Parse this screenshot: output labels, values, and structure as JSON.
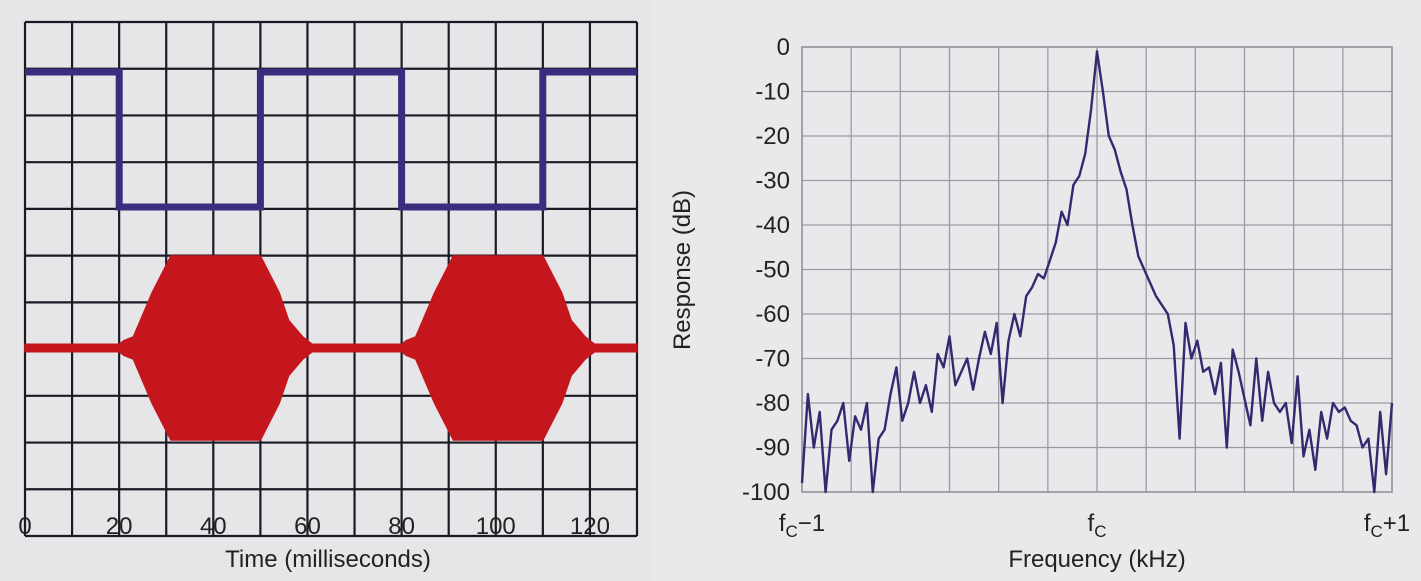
{
  "chart_data": [
    {
      "type": "line",
      "xlabel": "Time (milliseconds)",
      "ylabel": "",
      "xlim": [
        0,
        130
      ],
      "x_ticks": [
        "0",
        "20",
        "40",
        "60",
        "80",
        "100",
        "120"
      ],
      "grid": true,
      "series": [
        {
          "color": "#3b2c7e",
          "style": "square-wave",
          "x": [
            0,
            20,
            20,
            50,
            50,
            80,
            80,
            110,
            110,
            130
          ],
          "level": [
            "high",
            "high",
            "low",
            "low",
            "high",
            "high",
            "low",
            "low",
            "high",
            "high"
          ]
        },
        {
          "color": "#c4161c",
          "style": "amplitude-envelope",
          "x": [
            0,
            20,
            21,
            23,
            27,
            31,
            50,
            54,
            56,
            59,
            61,
            80,
            81,
            83,
            87,
            91,
            110,
            114,
            116,
            119,
            121,
            130
          ],
          "envelope": [
            0.04,
            0.04,
            0.08,
            0.12,
            0.6,
            1.0,
            1.0,
            0.6,
            0.3,
            0.12,
            0.04,
            0.04,
            0.08,
            0.12,
            0.6,
            1.0,
            1.0,
            0.6,
            0.3,
            0.12,
            0.04,
            0.04
          ]
        }
      ]
    },
    {
      "type": "line",
      "xlabel": "Frequency (kHz)",
      "ylabel": "Response (dB)",
      "ylim": [
        -100,
        0
      ],
      "y_ticks": [
        "0",
        "-10",
        "-20",
        "-30",
        "-40",
        "-50",
        "-60",
        "-70",
        "-80",
        "-90",
        "-100"
      ],
      "x_ticks": [
        {
          "base": "f",
          "sub": "C",
          "suffix": "−1"
        },
        {
          "base": "f",
          "sub": "C",
          "suffix": ""
        },
        {
          "base": "f",
          "sub": "C",
          "suffix": "+1"
        }
      ],
      "xlim": [
        -1,
        1
      ],
      "grid": true,
      "series": [
        {
          "color": "#33296e",
          "x": [
            -1.0,
            -0.98,
            -0.96,
            -0.94,
            -0.92,
            -0.9,
            -0.88,
            -0.86,
            -0.84,
            -0.82,
            -0.8,
            -0.78,
            -0.76,
            -0.74,
            -0.72,
            -0.7,
            -0.68,
            -0.66,
            -0.64,
            -0.62,
            -0.6,
            -0.58,
            -0.56,
            -0.54,
            -0.52,
            -0.5,
            -0.48,
            -0.46,
            -0.44,
            -0.42,
            -0.4,
            -0.38,
            -0.36,
            -0.34,
            -0.32,
            -0.3,
            -0.28,
            -0.26,
            -0.24,
            -0.22,
            -0.2,
            -0.18,
            -0.16,
            -0.14,
            -0.12,
            -0.1,
            -0.08,
            -0.06,
            -0.04,
            -0.02,
            0.0,
            0.02,
            0.04,
            0.06,
            0.08,
            0.1,
            0.12,
            0.14,
            0.16,
            0.18,
            0.2,
            0.22,
            0.24,
            0.26,
            0.28,
            0.3,
            0.32,
            0.34,
            0.36,
            0.38,
            0.4,
            0.42,
            0.44,
            0.46,
            0.48,
            0.5,
            0.52,
            0.54,
            0.56,
            0.58,
            0.6,
            0.62,
            0.64,
            0.66,
            0.68,
            0.7,
            0.72,
            0.74,
            0.76,
            0.78,
            0.8,
            0.82,
            0.84,
            0.86,
            0.88,
            0.9,
            0.92,
            0.94,
            0.96,
            0.98,
            1.0
          ],
          "y": [
            -98,
            -78,
            -90,
            -82,
            -100,
            -86,
            -84,
            -80,
            -93,
            -83,
            -86,
            -80,
            -100,
            -88,
            -86,
            -78,
            -72,
            -84,
            -80,
            -73,
            -80,
            -76,
            -82,
            -69,
            -72,
            -65,
            -76,
            -73,
            -70,
            -77,
            -70,
            -64,
            -69,
            -62,
            -80,
            -66,
            -60,
            -65,
            -56,
            -54,
            -51,
            -52,
            -48,
            -44,
            -37,
            -40,
            -31,
            -29,
            -24,
            -14,
            -1,
            -10,
            -20,
            -23,
            -28,
            -32,
            -40,
            -47,
            -50,
            -53,
            -56,
            -58,
            -60,
            -67,
            -88,
            -62,
            -70,
            -66,
            -73,
            -72,
            -78,
            -71,
            -90,
            -68,
            -73,
            -79,
            -85,
            -70,
            -84,
            -73,
            -80,
            -82,
            -80,
            -89,
            -74,
            -92,
            -86,
            -95,
            -82,
            -88,
            -80,
            -82,
            -81,
            -84,
            -85,
            -90,
            -88,
            -100,
            -82,
            -96,
            -80
          ]
        }
      ]
    }
  ]
}
